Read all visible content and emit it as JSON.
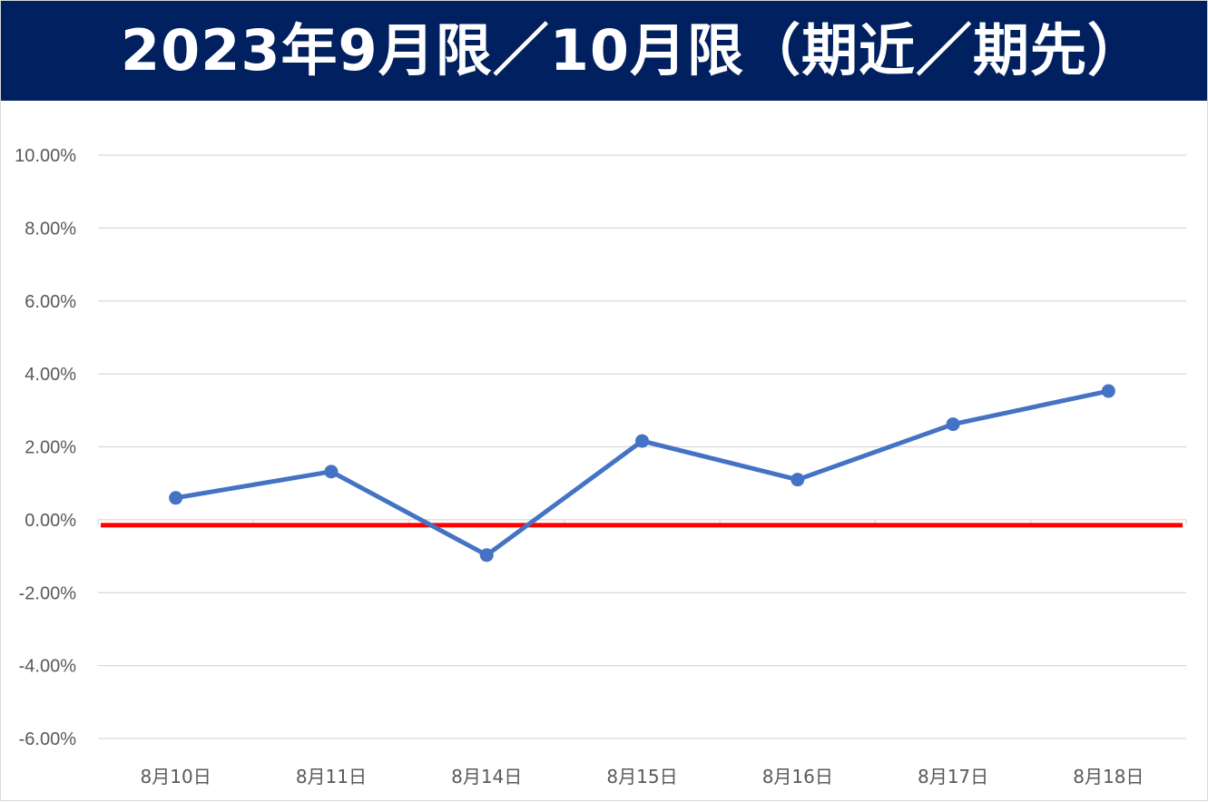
{
  "chart_data": {
    "type": "line",
    "title": "2023年9月限／10月限（期近／期先）",
    "xlabel": "",
    "ylabel": "",
    "categories": [
      "8月10日",
      "8月11日",
      "8月14日",
      "8月15日",
      "8月16日",
      "8月17日",
      "8月18日"
    ],
    "series": [
      {
        "name": "",
        "values": [
          0.6,
          1.32,
          -0.97,
          2.16,
          1.1,
          2.62,
          3.53
        ],
        "color": "#4472c4"
      }
    ],
    "reference_line": {
      "value": -0.15,
      "color": "#ff0000"
    },
    "ylim": [
      -6,
      10
    ],
    "yticks": [
      -6,
      -4,
      -2,
      0,
      2,
      4,
      6,
      8,
      10
    ],
    "ytick_labels": [
      "-6.00%",
      "-4.00%",
      "-2.00%",
      "0.00%",
      "2.00%",
      "4.00%",
      "6.00%",
      "8.00%",
      "10.00%"
    ],
    "grid": true,
    "legend": "none"
  }
}
